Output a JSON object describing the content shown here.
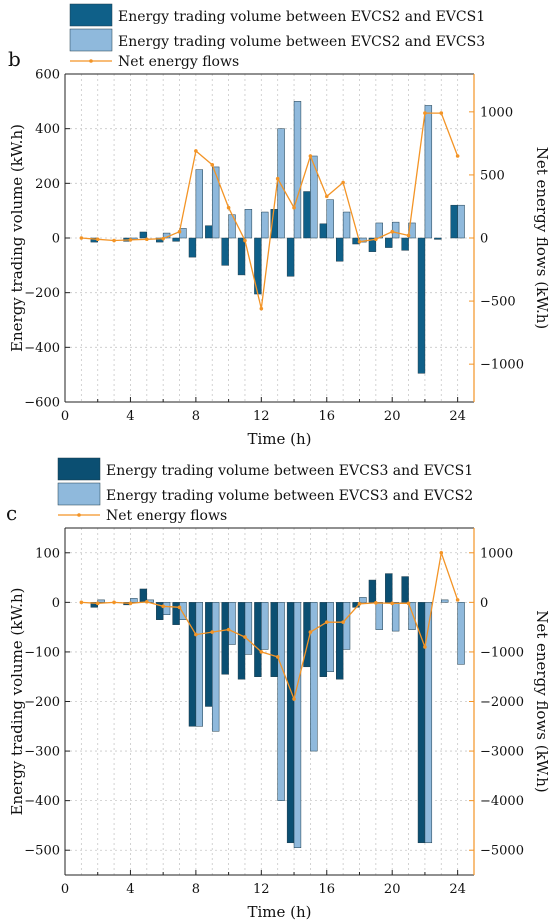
{
  "chart_data": [
    {
      "type": "bar",
      "panel_label": "b",
      "xlabel": "Time (h)",
      "ylabel": "Energy trading volume (kW.h)",
      "ylabel_right": "Net energy flows (kW.h)",
      "xlim": [
        0,
        25
      ],
      "ylim": [
        -600,
        600
      ],
      "ylim_right": [
        -1300,
        1300
      ],
      "xticks": [
        0,
        4,
        8,
        12,
        16,
        20,
        24
      ],
      "yticks": [
        -600,
        -400,
        -200,
        0,
        200,
        400,
        600
      ],
      "yticks_right": [
        -1000,
        -500,
        0,
        500,
        1000
      ],
      "grid": true,
      "legend_position": "top",
      "colors": {
        "series1": "#0f6089",
        "series2": "#8fb9dc",
        "line": "#f39426"
      },
      "x": [
        1,
        2,
        3,
        4,
        5,
        6,
        7,
        8,
        9,
        10,
        11,
        12,
        13,
        14,
        15,
        16,
        17,
        18,
        19,
        20,
        21,
        22,
        23,
        24
      ],
      "series": [
        {
          "name": "Energy trading volume between EVCS2 and EVCS1",
          "kind": "bar",
          "axis": "left",
          "values": [
            0,
            -15,
            0,
            -12,
            22,
            -15,
            -12,
            -70,
            45,
            -100,
            -135,
            -205,
            105,
            -140,
            170,
            52,
            -85,
            -22,
            -50,
            -35,
            -45,
            -495,
            -5,
            120
          ]
        },
        {
          "name": "Energy trading volume between EVCS2 and EVCS3",
          "kind": "bar",
          "axis": "left",
          "values": [
            0,
            0,
            0,
            -5,
            0,
            18,
            35,
            250,
            260,
            85,
            105,
            95,
            400,
            500,
            300,
            140,
            95,
            -15,
            55,
            58,
            55,
            485,
            0,
            120
          ]
        },
        {
          "name": "Net energy flows",
          "kind": "line",
          "axis": "right",
          "values": [
            0,
            -10,
            -20,
            -15,
            -10,
            -5,
            50,
            690,
            580,
            240,
            -20,
            -560,
            470,
            240,
            650,
            330,
            440,
            -30,
            -10,
            50,
            20,
            990,
            990,
            650
          ]
        }
      ]
    },
    {
      "type": "bar",
      "panel_label": "c",
      "xlabel": "Time (h)",
      "ylabel": "Energy trading volume (kW.h)",
      "ylabel_right": "Net energy flows (kW.h)",
      "xlim": [
        0,
        25
      ],
      "ylim": [
        -550,
        150
      ],
      "ylim_right": [
        -5500,
        1500
      ],
      "xticks": [
        0,
        4,
        8,
        12,
        16,
        20,
        24
      ],
      "yticks": [
        -500,
        -400,
        -300,
        -200,
        -100,
        0,
        100
      ],
      "yticks_right": [
        -5000,
        -4000,
        -3000,
        -2000,
        -1000,
        0,
        1000
      ],
      "grid": true,
      "legend_position": "top",
      "colors": {
        "series1": "#0b4f72",
        "series2": "#8fb9dc",
        "line": "#f39426"
      },
      "x": [
        1,
        2,
        3,
        4,
        5,
        6,
        7,
        8,
        9,
        10,
        11,
        12,
        13,
        14,
        15,
        16,
        17,
        18,
        19,
        20,
        21,
        22,
        23,
        24
      ],
      "series": [
        {
          "name": "Energy trading volume between EVCS3 and EVCS1",
          "kind": "bar",
          "axis": "left",
          "values": [
            0,
            -10,
            0,
            -5,
            27,
            -35,
            -45,
            -250,
            -210,
            -145,
            -155,
            -150,
            -150,
            -485,
            -130,
            -150,
            -155,
            -10,
            45,
            58,
            52,
            -485,
            0,
            0
          ]
        },
        {
          "name": "Energy trading volume between EVCS3 and EVCS2",
          "kind": "bar",
          "axis": "left",
          "values": [
            0,
            5,
            0,
            8,
            5,
            -25,
            -35,
            -250,
            -260,
            -85,
            -105,
            -95,
            -400,
            -495,
            -300,
            -140,
            -95,
            10,
            -55,
            -58,
            -55,
            -485,
            5,
            -125
          ]
        },
        {
          "name": "Net energy flows",
          "kind": "line",
          "axis": "right",
          "values": [
            0,
            -20,
            0,
            -20,
            10,
            -80,
            -100,
            -650,
            -600,
            -550,
            -700,
            -1000,
            -1100,
            -1950,
            -600,
            -400,
            -400,
            -30,
            -10,
            -20,
            -20,
            -900,
            1000,
            50
          ]
        }
      ]
    }
  ]
}
